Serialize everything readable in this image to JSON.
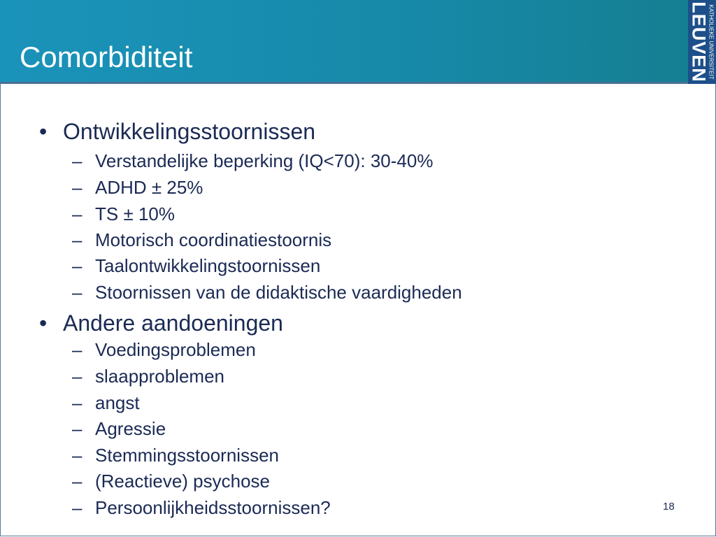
{
  "slide": {
    "title": "Comorbiditeit",
    "logo": {
      "line1": "KATHOLIEKE UNIVERSITEIT",
      "line2": "LEUVEN",
      "color": "#1d4f8a"
    },
    "header_color": "#1a93ba",
    "page_number": "18",
    "sections": [
      {
        "label": "Ontwikkelingsstoornissen",
        "items": [
          "Verstandelijke beperking (IQ<70): 30-40%",
          "ADHD  ± 25%",
          "TS ± 10%",
          "Motorisch coordinatiestoornis",
          "Taalontwikkelingstoornissen",
          "Stoornissen van de didaktische vaardigheden"
        ]
      },
      {
        "label": "Andere aandoeningen",
        "items": [
          "Voedingsproblemen",
          "slaapproblemen",
          "angst",
          "Agressie",
          "Stemmingsstoornissen",
          "(Reactieve) psychose",
          "Persoonlijkheidsstoornissen?"
        ]
      }
    ],
    "bullet": "•",
    "dash": "–"
  }
}
